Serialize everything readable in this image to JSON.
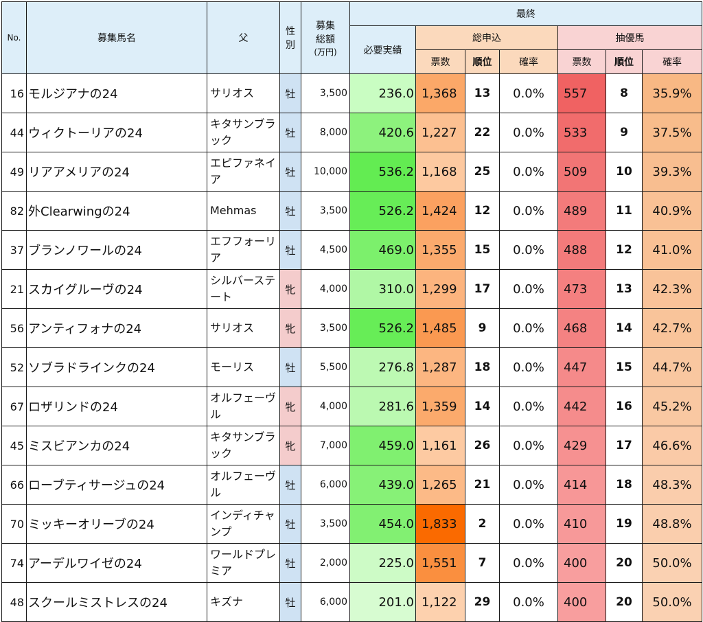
{
  "header": {
    "no": "No.",
    "name": "募集馬名",
    "sire": "父",
    "sex_line1": "性",
    "sex_line2": "別",
    "amount_line1": "募集",
    "amount_line2": "総額",
    "amount_unit": "(万円)",
    "final": "最終",
    "required": "必要実績",
    "total_apps": "総申込",
    "priority": "抽優馬",
    "votes": "票数",
    "rank": "順位",
    "prob": "確率"
  },
  "colors": {
    "male_bg": "#cfe2f3",
    "female_bg": "#f4cccc",
    "header_bg": "#ddeef9"
  },
  "rows": [
    {
      "no": "16",
      "name": "モルジアナの24",
      "sire": "サリオス",
      "sex": "牡",
      "amount": "3,500",
      "required": "236.0",
      "apps": "1,368",
      "apps_rank": "13",
      "apps_prob": "0.0%",
      "prio": "557",
      "prio_rank": "8",
      "prio_prob": "35.9%",
      "bg_req": "#c9fdc2",
      "bg_apps": "#fba868",
      "bg_prio": "#f06262",
      "bg_prob": "#f8b884"
    },
    {
      "no": "44",
      "name": "ウィクトーリアの24",
      "sire": "キタサンブラック",
      "sex": "牡",
      "amount": "8,000",
      "required": "420.6",
      "apps": "1,227",
      "apps_rank": "22",
      "apps_prob": "0.0%",
      "prio": "533",
      "prio_rank": "9",
      "prio_prob": "37.5%",
      "bg_req": "#8df27d",
      "bg_apps": "#fcc091",
      "bg_prio": "#f16c6c",
      "bg_prob": "#f8bc8b"
    },
    {
      "no": "49",
      "name": "リアアメリアの24",
      "sire": "エピファネイア",
      "sex": "牡",
      "amount": "10,000",
      "required": "536.2",
      "apps": "1,168",
      "apps_rank": "25",
      "apps_prob": "0.0%",
      "prio": "509",
      "prio_rank": "10",
      "prio_prob": "39.3%",
      "bg_req": "#63ec52",
      "bg_apps": "#fdc9a0",
      "bg_prio": "#f27575",
      "bg_prob": "#f8be90"
    },
    {
      "no": "82",
      "name": "外Clearwingの24",
      "sire": "Mehmas",
      "sex": "牡",
      "amount": "3,500",
      "required": "526.2",
      "apps": "1,424",
      "apps_rank": "12",
      "apps_prob": "0.0%",
      "prio": "489",
      "prio_rank": "11",
      "prio_prob": "40.9%",
      "bg_req": "#67ed57",
      "bg_apps": "#fba160",
      "bg_prio": "#f37b7b",
      "bg_prob": "#f9c195"
    },
    {
      "no": "37",
      "name": "ブランノワールの24",
      "sire": "エフフォーリア",
      "sex": "牡",
      "amount": "4,500",
      "required": "469.0",
      "apps": "1,355",
      "apps_rank": "15",
      "apps_prob": "0.0%",
      "prio": "488",
      "prio_rank": "12",
      "prio_prob": "41.0%",
      "bg_req": "#7cf06c",
      "bg_apps": "#fbaa6d",
      "bg_prio": "#f37b7b",
      "bg_prob": "#f9c195"
    },
    {
      "no": "21",
      "name": "スカイグルーヴの24",
      "sire": "シルバーステート",
      "sex": "牝",
      "amount": "4,000",
      "required": "310.0",
      "apps": "1,299",
      "apps_rank": "17",
      "apps_prob": "0.0%",
      "prio": "473",
      "prio_rank": "13",
      "prio_prob": "42.3%",
      "bg_req": "#b0f7a5",
      "bg_apps": "#fcb47e",
      "bg_prio": "#f48080",
      "bg_prob": "#f9c399"
    },
    {
      "no": "56",
      "name": "アンティフォナの24",
      "sire": "サリオス",
      "sex": "牝",
      "amount": "3,500",
      "required": "526.2",
      "apps": "1,485",
      "apps_rank": "9",
      "apps_prob": "0.0%",
      "prio": "468",
      "prio_rank": "14",
      "prio_prob": "42.7%",
      "bg_req": "#67ed57",
      "bg_apps": "#fa9951",
      "bg_prio": "#f48282",
      "bg_prob": "#f9c49a"
    },
    {
      "no": "52",
      "name": "ソブラドラインクの24",
      "sire": "モーリス",
      "sex": "牡",
      "amount": "5,500",
      "required": "276.8",
      "apps": "1,287",
      "apps_rank": "18",
      "apps_prob": "0.0%",
      "prio": "447",
      "prio_rank": "15",
      "prio_prob": "44.7%",
      "bg_req": "#bdf9b3",
      "bg_apps": "#fcb681",
      "bg_prio": "#f58a8a",
      "bg_prob": "#f9c7a0"
    },
    {
      "no": "67",
      "name": "ロザリンドの24",
      "sire": "オルフェーヴル",
      "sex": "牝",
      "amount": "4,000",
      "required": "281.6",
      "apps": "1,359",
      "apps_rank": "14",
      "apps_prob": "0.0%",
      "prio": "442",
      "prio_rank": "16",
      "prio_prob": "45.2%",
      "bg_req": "#bbf9b1",
      "bg_apps": "#fbaa6c",
      "bg_prio": "#f58c8c",
      "bg_prob": "#f9c8a2"
    },
    {
      "no": "45",
      "name": "ミスビアンカの24",
      "sire": "キタサンブラック",
      "sex": "牝",
      "amount": "7,000",
      "required": "459.0",
      "apps": "1,161",
      "apps_rank": "26",
      "apps_prob": "0.0%",
      "prio": "429",
      "prio_rank": "17",
      "prio_prob": "46.6%",
      "bg_req": "#80f070",
      "bg_apps": "#fdcaa2",
      "bg_prio": "#f69191",
      "bg_prob": "#facaa7"
    },
    {
      "no": "66",
      "name": "ローブティサージュの24",
      "sire": "オルフェーヴル",
      "sex": "牡",
      "amount": "6,000",
      "required": "439.0",
      "apps": "1,265",
      "apps_rank": "21",
      "apps_prob": "0.0%",
      "prio": "414",
      "prio_rank": "18",
      "prio_prob": "48.3%",
      "bg_req": "#87f177",
      "bg_apps": "#fcba87",
      "bg_prio": "#f79797",
      "bg_prob": "#facdac"
    },
    {
      "no": "70",
      "name": "ミッキーオリーブの24",
      "sire": "インディチャンプ",
      "sex": "牡",
      "amount": "3,500",
      "required": "454.0",
      "apps": "1,833",
      "apps_rank": "2",
      "apps_prob": "0.0%",
      "prio": "410",
      "prio_rank": "19",
      "prio_prob": "48.8%",
      "bg_req": "#82f072",
      "bg_apps": "#fa6a00",
      "bg_prio": "#f79999",
      "bg_prob": "#facead"
    },
    {
      "no": "74",
      "name": "アーデルワイゼの24",
      "sire": "ワールドプレミア",
      "sex": "牡",
      "amount": "2,000",
      "required": "225.0",
      "apps": "1,551",
      "apps_rank": "7",
      "apps_prob": "0.0%",
      "prio": "400",
      "prio_rank": "20",
      "prio_prob": "50.0%",
      "bg_req": "#cdfbc6",
      "bg_apps": "#fa8f3f",
      "bg_prio": "#f89e9e",
      "bg_prob": "#fad1b2"
    },
    {
      "no": "48",
      "name": "スクールミストレスの24",
      "sire": "キズナ",
      "sex": "牡",
      "amount": "6,000",
      "required": "201.0",
      "apps": "1,122",
      "apps_rank": "29",
      "apps_prob": "0.0%",
      "prio": "400",
      "prio_rank": "20",
      "prio_prob": "50.0%",
      "bg_req": "#d7fcd1",
      "bg_apps": "#fdd1ae",
      "bg_prio": "#f89e9e",
      "bg_prob": "#fad1b2"
    }
  ]
}
